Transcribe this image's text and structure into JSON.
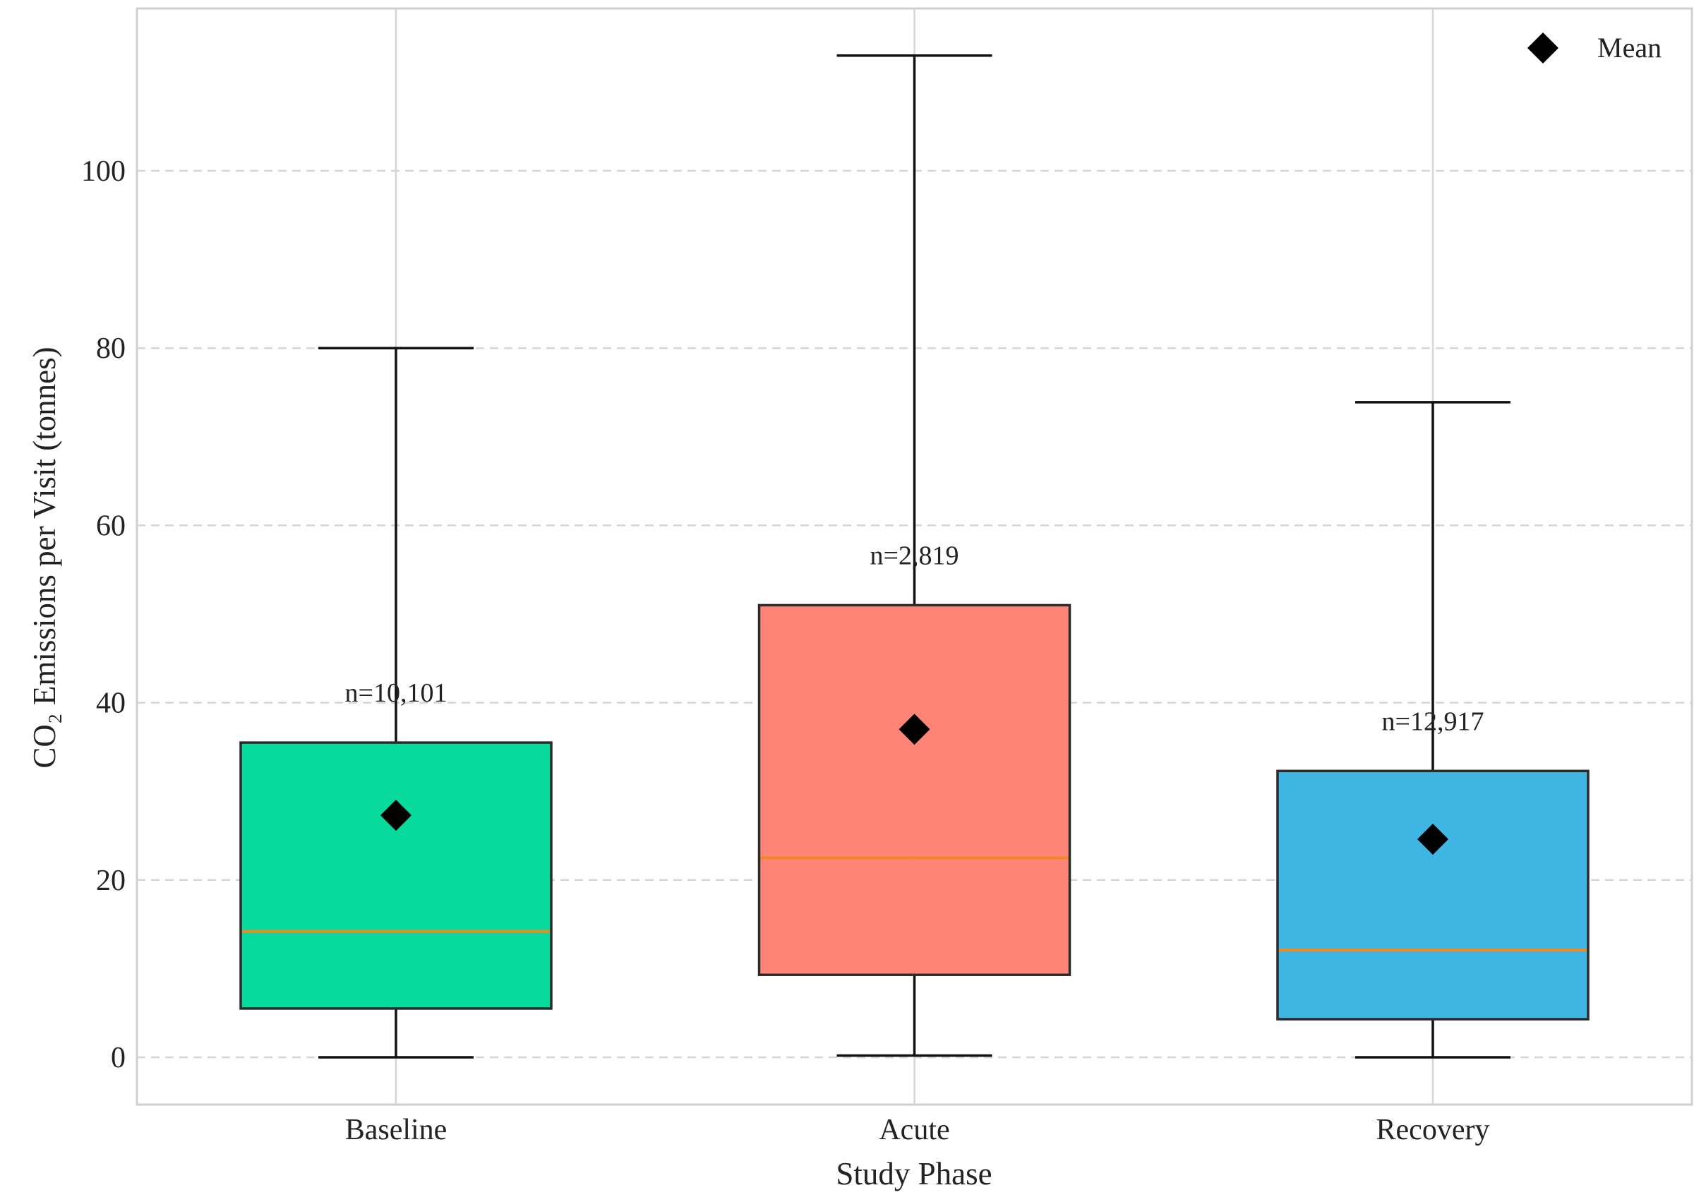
{
  "chart_data": {
    "type": "box",
    "title": "",
    "xlabel": "Study Phase",
    "ylabel": "CO₂ Emissions per Visit (tonnes)",
    "ylim": [
      -5.5,
      118.5
    ],
    "yticks": [
      0,
      20,
      40,
      60,
      80,
      100
    ],
    "grid": {
      "y": true,
      "x": true
    },
    "legend": {
      "position": "top-right",
      "entries": [
        {
          "marker": "diamond",
          "label": "Mean"
        }
      ]
    },
    "categories": [
      "Baseline",
      "Acute",
      "Recovery"
    ],
    "colors": [
      "#00d89a",
      "#ff8074",
      "#38b3e2"
    ],
    "median_color": "#f08a20",
    "boxes": [
      {
        "label": "Baseline",
        "whisker_low": 0.0,
        "q1": 5.5,
        "median": 14.2,
        "q3": 35.5,
        "whisker_high": 80.0,
        "mean": 27.3,
        "n_label": "n=10,101"
      },
      {
        "label": "Acute",
        "whisker_low": 0.2,
        "q1": 9.3,
        "median": 22.5,
        "q3": 51.0,
        "whisker_high": 113.0,
        "mean": 37.0,
        "n_label": "n=2,819"
      },
      {
        "label": "Recovery",
        "whisker_low": 0.0,
        "q1": 4.3,
        "median": 12.1,
        "q3": 32.3,
        "whisker_high": 73.9,
        "mean": 24.6,
        "n_label": "n=12,917"
      }
    ]
  }
}
